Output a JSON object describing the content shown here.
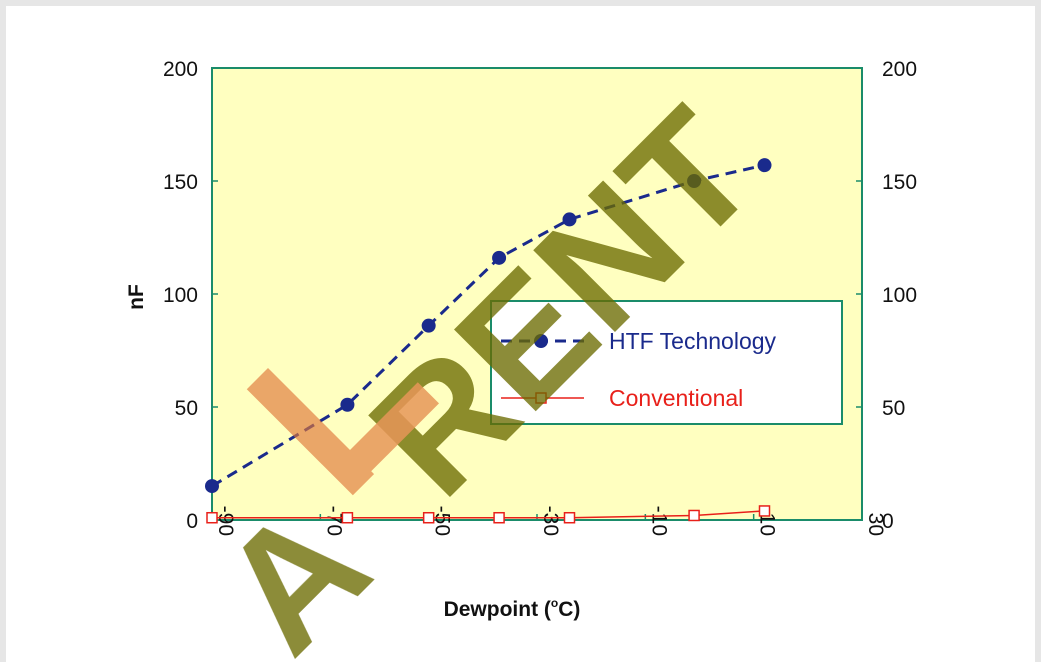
{
  "chart_data": {
    "type": "line",
    "xlabel": "Dewpoint (°C)",
    "xlabel_main": "Dewpoint (",
    "xlabel_sup": "o",
    "xlabel_tail": "C)",
    "ylabel": "nF",
    "xlim": [
      -90,
      30
    ],
    "ylim": [
      0,
      200
    ],
    "xticks": [
      -90,
      -70,
      -50,
      -30,
      -10,
      10,
      30
    ],
    "yticks": [
      0,
      50,
      100,
      150,
      200
    ],
    "right_yticks": [
      0,
      50,
      100,
      150,
      200
    ],
    "grid": false,
    "plot_background": "#ffffc0",
    "frame_color": "#1a8c6a",
    "legend_position": "center-right",
    "series": [
      {
        "name": "HTF Technology",
        "color": "#1a2a8c",
        "line_style": "dashed",
        "marker": "filled-circle",
        "x": [
          -90,
          -65,
          -50,
          -37,
          -24,
          -1,
          12
        ],
        "y": [
          15,
          51,
          86,
          116,
          133,
          150,
          157
        ]
      },
      {
        "name": "Conventional",
        "color": "#e8201a",
        "line_style": "solid",
        "marker": "open-square",
        "x": [
          -90,
          -65,
          -50,
          -37,
          -24,
          -1,
          12
        ],
        "y": [
          1,
          1,
          1,
          1,
          1,
          2,
          4
        ]
      }
    ]
  },
  "watermark": {
    "text": "A-RENT",
    "colors": [
      "#6b6b00",
      "#e0783a"
    ]
  }
}
